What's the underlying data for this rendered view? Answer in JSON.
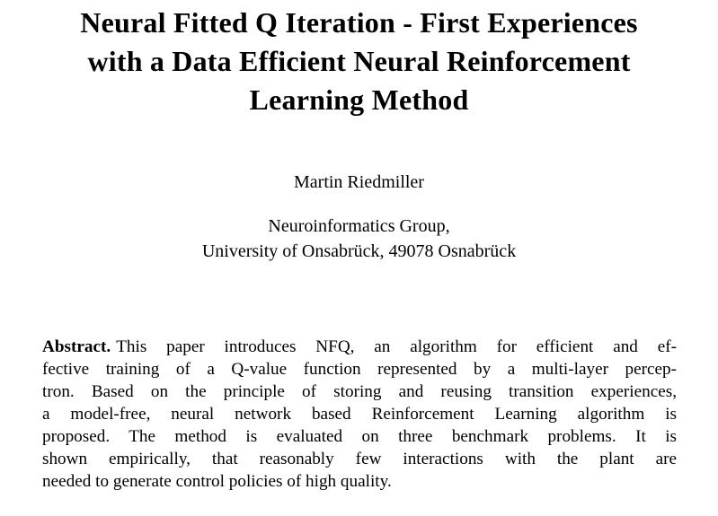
{
  "paper": {
    "title_lines": [
      "Neural Fitted Q Iteration - First Experiences",
      "with a Data Efficient Neural Reinforcement",
      "Learning Method"
    ],
    "author": "Martin Riedmiller",
    "affiliation_lines": [
      "Neuroinformatics Group,",
      "University of Onsabrück, 49078 Osnabrück"
    ],
    "abstract": {
      "label": "Abstract.",
      "lines": [
        "This paper introduces NFQ, an algorithm for efficient and ef-",
        "fective training of a Q-value function represented by a multi-layer percep-",
        "tron. Based on the principle of storing and reusing transition experiences,",
        "a model-free, neural network based Reinforcement Learning algorithm is",
        "proposed. The method is evaluated on three benchmark problems. It is",
        "shown empirically, that reasonably few interactions with the plant are",
        "needed to generate control policies of high quality."
      ]
    }
  }
}
